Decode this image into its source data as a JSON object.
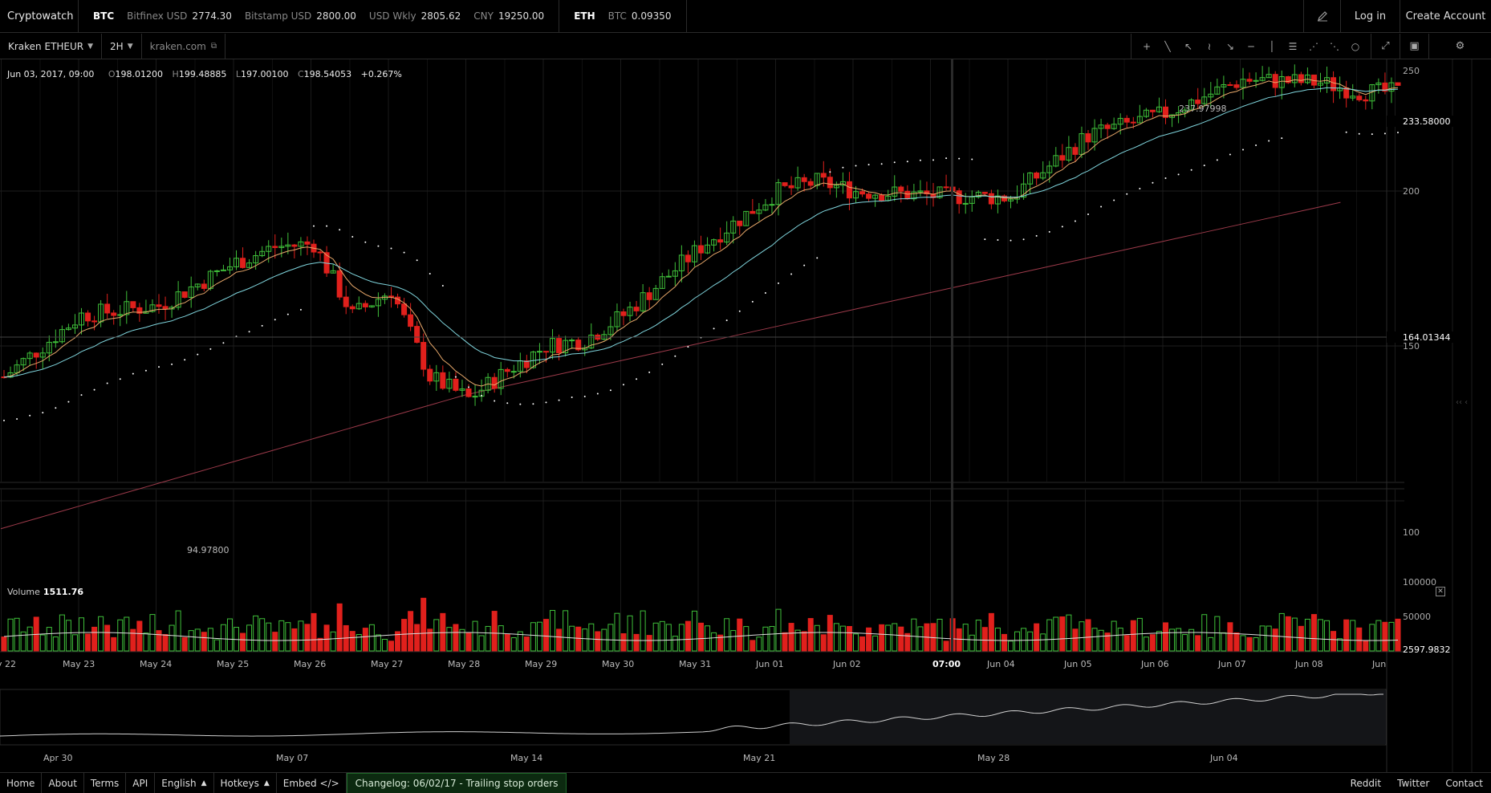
{
  "brand": "Cryptowatch",
  "tickers": [
    {
      "symbol": "BTC",
      "quotes": [
        {
          "pair": "Bitfinex USD",
          "value": "2774.30"
        },
        {
          "pair": "Bitstamp USD",
          "value": "2800.00"
        },
        {
          "pair": "USD Wkly",
          "value": "2805.62"
        },
        {
          "pair": "CNY",
          "value": "19250.00"
        }
      ]
    },
    {
      "symbol": "ETH",
      "quotes": [
        {
          "pair": "BTC",
          "value": "0.09350"
        }
      ]
    }
  ],
  "header": {
    "login": "Log in",
    "create_account": "Create Account",
    "tool_icon": "pen-icon"
  },
  "toolbar": {
    "market": "Kraken ETHEUR",
    "interval": "2H",
    "exchange_link": "kraken.com",
    "tools": [
      "+",
      "╲",
      "↖",
      "≀",
      "↘",
      "─",
      "│",
      "☰",
      "⋰",
      "⋱",
      "○"
    ],
    "tool_names": [
      "crosshair-icon",
      "trend-line-icon",
      "ray-icon",
      "curve-icon",
      "arrow-icon",
      "horizontal-line-icon",
      "vertical-line-icon",
      "fib-icon",
      "pitchfork-icon",
      "fan-icon",
      "circle-icon"
    ],
    "fullscreen_icon": "⤢",
    "snapshot_icon": "▣",
    "settings_icon": "⚙"
  },
  "ohlc": {
    "date": "Jun 03, 2017, 09:00",
    "open_label": "O",
    "open": "198.01200",
    "high_label": "H",
    "high": "199.48885",
    "low_label": "L",
    "low": "197.00100",
    "close_label": "C",
    "close": "198.54053",
    "change": "+0.267%"
  },
  "price_axis": {
    "ticks": [
      "250",
      "200",
      "150",
      "100"
    ],
    "last_price": "233.58000",
    "crosshair_price": "164.01344",
    "high_marker": "237.97998",
    "low_marker": "94.97800"
  },
  "volume": {
    "label": "Volume",
    "value": "1511.76",
    "ticks": [
      "100000",
      "50000"
    ],
    "last": "2597.9832"
  },
  "time_axis": {
    "labels": [
      "y 22",
      "May 23",
      "May 24",
      "May 25",
      "May 26",
      "May 27",
      "May 28",
      "May 29",
      "May 30",
      "May 31",
      "Jun 01",
      "Jun 02",
      "07:00",
      "Jun 04",
      "Jun 05",
      "Jun 06",
      "Jun 07",
      "Jun 08",
      "Jun"
    ]
  },
  "navigator": {
    "labels": [
      "Apr 30",
      "May 07",
      "May 14",
      "May 21",
      "May 28",
      "Jun 04"
    ]
  },
  "chart_data": {
    "type": "candlestick",
    "market": "Kraken ETHEUR",
    "interval": "2H",
    "x_range": [
      "May 22",
      "Jun 08"
    ],
    "ylim": [
      90,
      255
    ],
    "y_ticks": [
      100,
      150,
      200,
      250
    ],
    "close_path": [
      [
        "May 22",
        140
      ],
      [
        "May 23",
        160
      ],
      [
        "May 24",
        163
      ],
      [
        "May 25",
        177
      ],
      [
        "May 25 12:00",
        182
      ],
      [
        "May 26",
        183
      ],
      [
        "May 26 12:00",
        160
      ],
      [
        "May 27",
        168
      ],
      [
        "May 27 12:00",
        140
      ],
      [
        "May 28",
        133
      ],
      [
        "May 28 12:00",
        142
      ],
      [
        "May 29",
        150
      ],
      [
        "May 29 12:00",
        152
      ],
      [
        "May 30",
        160
      ],
      [
        "May 31",
        182
      ],
      [
        "Jun 01",
        200
      ],
      [
        "Jun 01 12:00",
        203
      ],
      [
        "Jun 02",
        200
      ],
      [
        "Jun 03",
        198.5
      ],
      [
        "Jun 04",
        198
      ],
      [
        "Jun 05",
        218
      ],
      [
        "Jun 06",
        225
      ],
      [
        "Jun 07",
        236
      ],
      [
        "Jun 08",
        235
      ],
      [
        "Jun 08 12:00",
        232
      ]
    ],
    "volume_ylim": [
      0,
      100000
    ],
    "volume_ticks": [
      50000,
      100000
    ],
    "volume_last": 2597.9832
  },
  "footer": {
    "links": [
      "Home",
      "About",
      "Terms",
      "API"
    ],
    "language": "English",
    "hotkeys": "Hotkeys",
    "embed": "Embed </>",
    "changelog": "Changelog: 06/02/17 - Trailing stop orders",
    "social": [
      "Reddit",
      "Twitter",
      "Contact"
    ]
  },
  "colors": {
    "up": "#3fbf3a",
    "down": "#e0201c",
    "ema_fast": "#e8a86a",
    "ema_slow": "#7fd4dc",
    "ma_long": "#9c3a4a"
  }
}
